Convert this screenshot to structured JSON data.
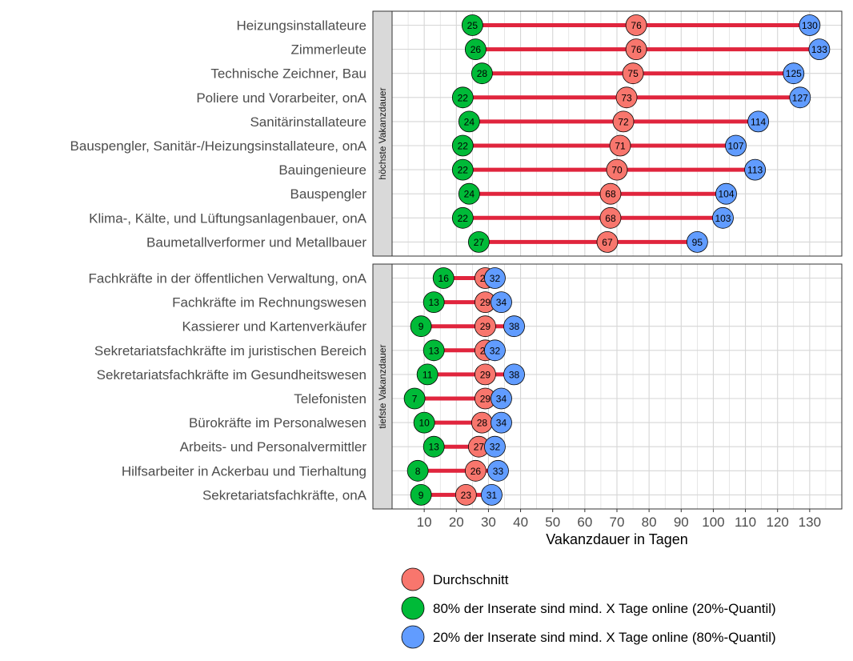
{
  "chart_data": {
    "type": "dumbbell",
    "xlabel": "Vakanzdauer in Tagen",
    "xlim": [
      0,
      140
    ],
    "xticks": [
      10,
      20,
      30,
      40,
      50,
      60,
      70,
      80,
      90,
      100,
      110,
      120,
      130
    ],
    "grid": true,
    "legend_position": "bottom",
    "series": [
      {
        "key": "q20",
        "name": "80% der Inserate sind mind. X Tage online (20%-Quantil)",
        "color": "#00ba38"
      },
      {
        "key": "avg",
        "name": "Durchschnitt",
        "color": "#f8766d"
      },
      {
        "key": "q80",
        "name": "20% der Inserate sind mind. X Tage online (80%-Quantil)",
        "color": "#619cff"
      }
    ],
    "legend_order": [
      "avg",
      "q20",
      "q80"
    ],
    "segment_color": "#e0253d",
    "panels": [
      {
        "label": "höchste Vakanzdauer",
        "rows": [
          {
            "category": "Heizungsinstallateure",
            "q20": 25,
            "avg": 76,
            "q80": 130
          },
          {
            "category": "Zimmerleute",
            "q20": 26,
            "avg": 76,
            "q80": 133
          },
          {
            "category": "Technische Zeichner, Bau",
            "q20": 28,
            "avg": 75,
            "q80": 125
          },
          {
            "category": "Poliere und Vorarbeiter, onA",
            "q20": 22,
            "avg": 73,
            "q80": 127
          },
          {
            "category": "Sanitärinstallateure",
            "q20": 24,
            "avg": 72,
            "q80": 114
          },
          {
            "category": "Bauspengler, Sanitär-/Heizungsinstallateure, onA",
            "q20": 22,
            "avg": 71,
            "q80": 107
          },
          {
            "category": "Bauingenieure",
            "q20": 22,
            "avg": 70,
            "q80": 113
          },
          {
            "category": "Bauspengler",
            "q20": 24,
            "avg": 68,
            "q80": 104
          },
          {
            "category": "Klima-, Kälte, und Lüftungsanlagenbauer, onA",
            "q20": 22,
            "avg": 68,
            "q80": 103
          },
          {
            "category": "Baumetallverformer und Metallbauer",
            "q20": 27,
            "avg": 67,
            "q80": 95
          }
        ]
      },
      {
        "label": "tiefste Vakanzdauer",
        "rows": [
          {
            "category": "Fachkräfte in der öffentlichen Verwaltung, onA",
            "q20": 16,
            "avg": 29,
            "q80": 32
          },
          {
            "category": "Fachkräfte im Rechnungswesen",
            "q20": 13,
            "avg": 29,
            "q80": 34
          },
          {
            "category": "Kassierer und Kartenverkäufer",
            "q20": 9,
            "avg": 29,
            "q80": 38
          },
          {
            "category": "Sekretariatsfachkräfte im juristischen Bereich",
            "q20": 13,
            "avg": 29,
            "q80": 32
          },
          {
            "category": "Sekretariatsfachkräfte im Gesundheitswesen",
            "q20": 11,
            "avg": 29,
            "q80": 38
          },
          {
            "category": "Telefonisten",
            "q20": 7,
            "avg": 29,
            "q80": 34
          },
          {
            "category": "Bürokräfte im Personalwesen",
            "q20": 10,
            "avg": 28,
            "q80": 34
          },
          {
            "category": "Arbeits- und Personalvermittler",
            "q20": 13,
            "avg": 27,
            "q80": 32
          },
          {
            "category": "Hilfsarbeiter in Ackerbau und Tierhaltung",
            "q20": 8,
            "avg": 26,
            "q80": 33
          },
          {
            "category": "Sekretariatsfachkräfte, onA",
            "q20": 9,
            "avg": 23,
            "q80": 31
          }
        ]
      }
    ]
  }
}
